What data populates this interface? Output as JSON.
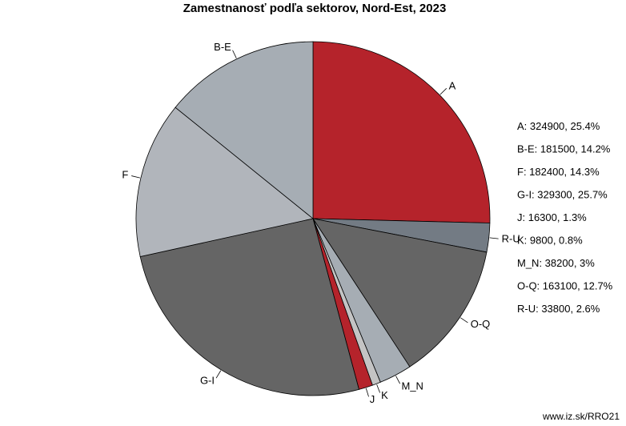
{
  "chart_data": {
    "type": "pie",
    "title": "Zamestnanosť podľa sektorov, Nord-Est, 2023",
    "slices": [
      {
        "label": "A",
        "value": 324900,
        "percent": "25.4%",
        "legend": "A: 324900, 25.4%",
        "color": "#b5232b"
      },
      {
        "label": "R-U",
        "value": 33800,
        "percent": "2.6%",
        "legend": "R-U: 33800, 2.6%",
        "color": "#737b84"
      },
      {
        "label": "O-Q",
        "value": 163100,
        "percent": "12.7%",
        "legend": "O-Q: 163100, 12.7%",
        "color": "#656565"
      },
      {
        "label": "M_N",
        "value": 38200,
        "percent": "3%",
        "legend": "M_N: 38200, 3%",
        "color": "#a6adb4"
      },
      {
        "label": "K",
        "value": 9800,
        "percent": "0.8%",
        "legend": "K: 9800, 0.8%",
        "color": "#c4c4c4"
      },
      {
        "label": "J",
        "value": 16300,
        "percent": "1.3%",
        "legend": "J: 16300, 1.3%",
        "color": "#b5232b"
      },
      {
        "label": "G-I",
        "value": 329300,
        "percent": "25.7%",
        "legend": "G-I: 329300, 25.7%",
        "color": "#656565"
      },
      {
        "label": "F",
        "value": 182400,
        "percent": "14.3%",
        "legend": "F: 182400, 14.3%",
        "color": "#b1b5bb"
      },
      {
        "label": "B-E",
        "value": 181500,
        "percent": "14.2%",
        "legend": "B-E: 181500, 14.2%",
        "color": "#a6adb4"
      }
    ],
    "legend_order": [
      "A",
      "B-E",
      "F",
      "G-I",
      "J",
      "K",
      "M_N",
      "O-Q",
      "R-U"
    ],
    "legend_position": "right"
  },
  "source": "www.iz.sk/RRO21"
}
